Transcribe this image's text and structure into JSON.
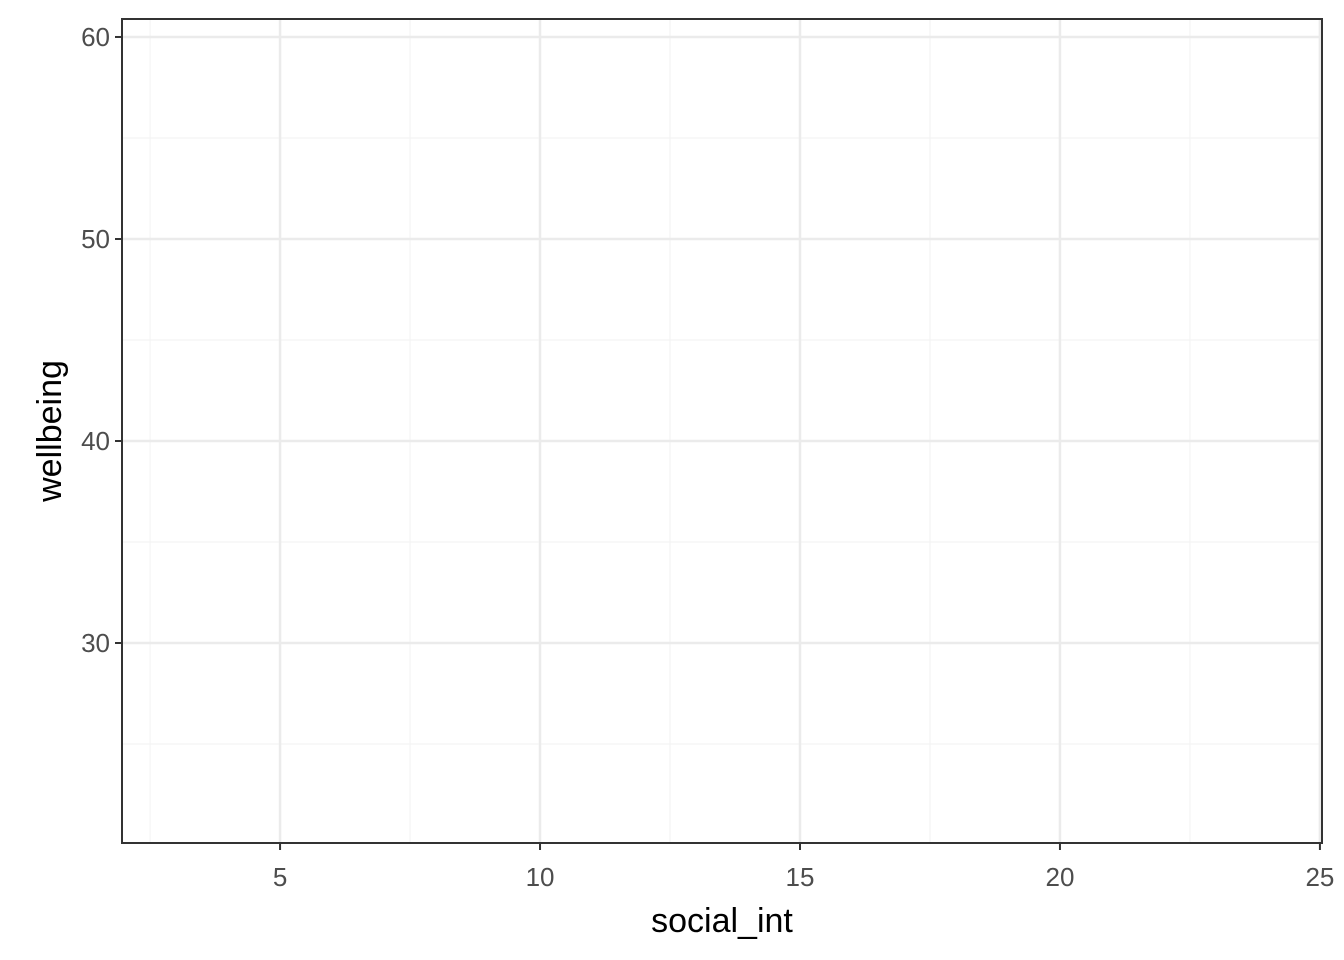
{
  "chart_data": {
    "type": "scatter",
    "xlabel": "social_int",
    "ylabel": "wellbeing",
    "xlim": [
      1.96,
      25.04
    ],
    "ylim": [
      20.1,
      60.89
    ],
    "xticks": [
      5,
      10,
      15,
      20,
      25
    ],
    "yticks": [
      30,
      40,
      50,
      60
    ],
    "grid": true
  }
}
